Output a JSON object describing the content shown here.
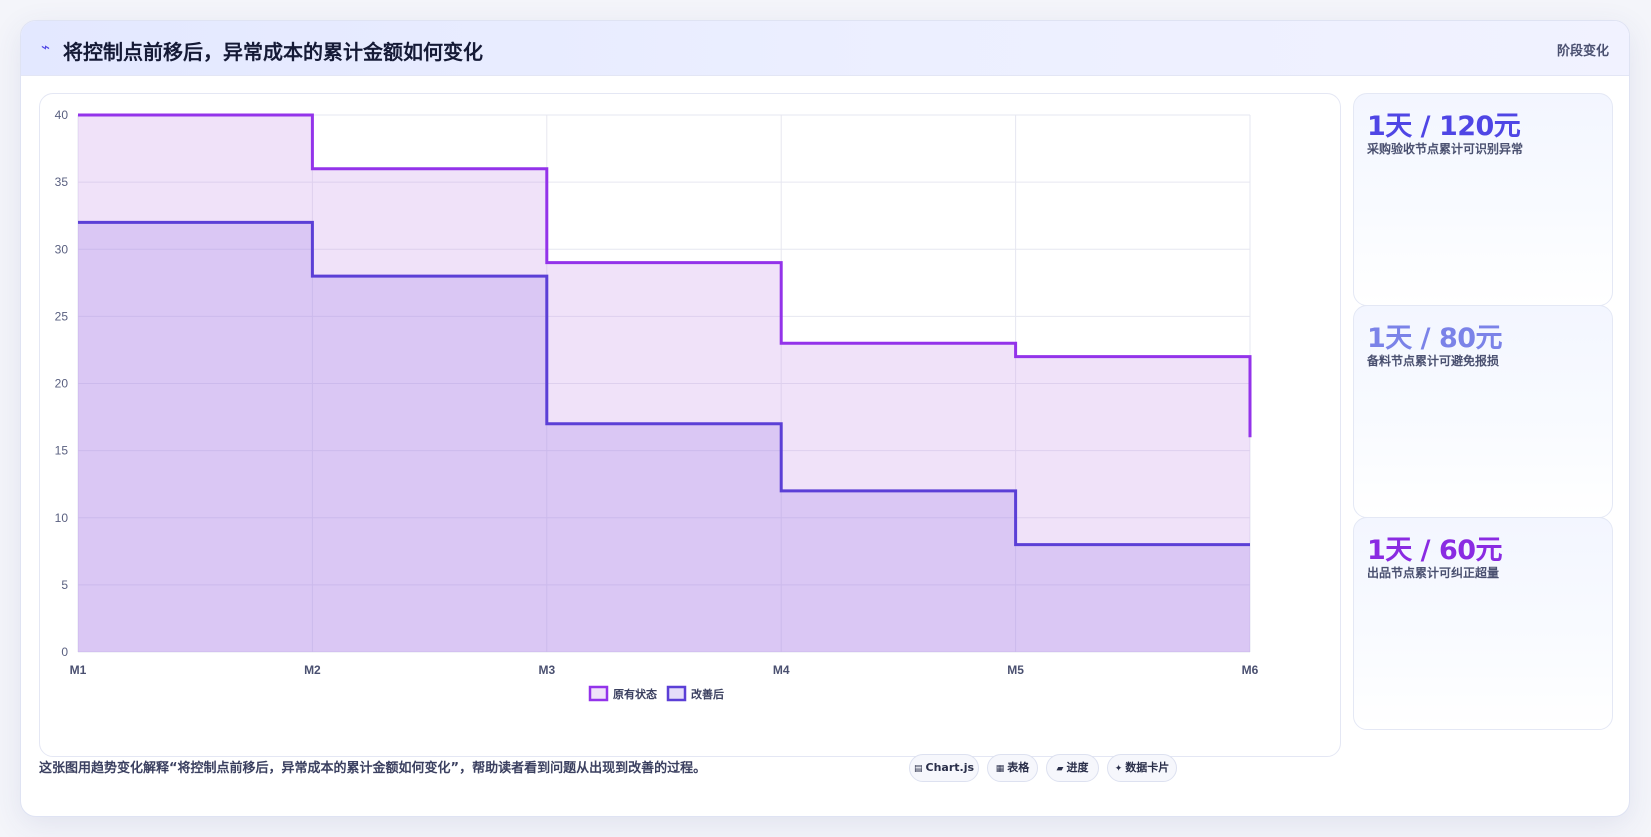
{
  "header": {
    "icon": "trend-icon",
    "title": "将控制点前移后，异常成本的累计金额如何变化",
    "tag": "阶段变化"
  },
  "chart_data": {
    "type": "line",
    "stepped": true,
    "fill": true,
    "categories": [
      "M1",
      "M2",
      "M3",
      "M4",
      "M5",
      "M6"
    ],
    "series": [
      {
        "name": "原有状态",
        "values": [
          40,
          36,
          29,
          23,
          22,
          16
        ],
        "color": "#9333ea",
        "fill": "rgba(200, 150, 235, 0.28)"
      },
      {
        "name": "改善后",
        "values": [
          32,
          28,
          17,
          12,
          8,
          8
        ],
        "color": "#5b3fd6",
        "fill": "rgba(150, 120, 230, 0.25)"
      }
    ],
    "ylim": [
      0,
      40
    ],
    "yticks": [
      0,
      5,
      10,
      15,
      20,
      25,
      30,
      35,
      40
    ],
    "grid": true,
    "legend_position": "bottom"
  },
  "side_cards": [
    {
      "value": "1天 / 120元",
      "desc": "采购验收节点累计可识别异常",
      "color": "#4f46e5"
    },
    {
      "value": "1天 / 80元",
      "desc": "备料节点累计可避免报损",
      "color": "#7b83e8"
    },
    {
      "value": "1天 / 60元",
      "desc": "出品节点累计可纠正超量",
      "color": "#8a2be2"
    }
  ],
  "caption": "这张图用趋势变化解释“将控制点前移后，异常成本的累计金额如何变化”，帮助读者看到问题从出现到改善的过程。",
  "chips": [
    {
      "icon": "chart-icon",
      "glyph": "▤",
      "label": "Chart.js"
    },
    {
      "icon": "table-icon",
      "glyph": "▦",
      "label": "表格"
    },
    {
      "icon": "progress-icon",
      "glyph": "▰",
      "label": "进度"
    },
    {
      "icon": "data-card-icon",
      "glyph": "✦",
      "label": "数据卡片"
    }
  ]
}
